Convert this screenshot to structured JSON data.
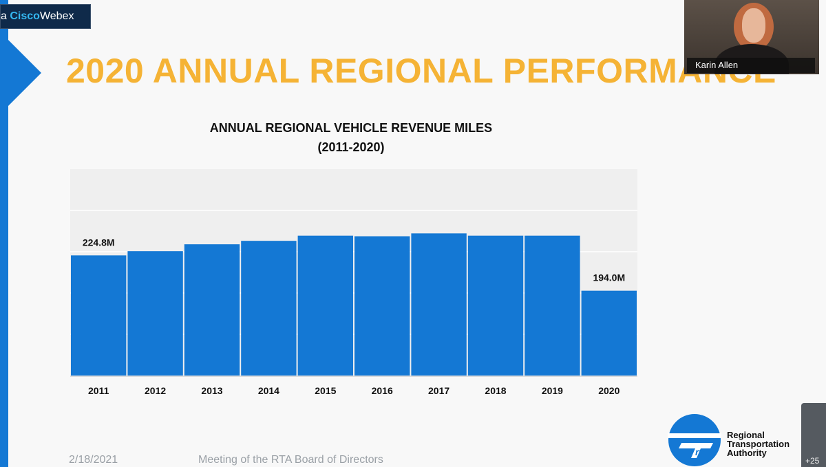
{
  "webex": {
    "prefix": "a",
    "brand_cisco": "Cisco",
    "brand_webex": "Webex"
  },
  "slide": {
    "title": "2020 ANNUAL REGIONAL PERFORMANCE",
    "footer_date": "2/18/2021",
    "footer_meeting": "Meeting of the RTA Board of Directors"
  },
  "video": {
    "participant_name": "Karin Allen"
  },
  "side_tab": {
    "label": "+25"
  },
  "logo": {
    "line1": "Regional",
    "line2": "Transportation",
    "line3": "Authority",
    "mark": "rta"
  },
  "colors": {
    "bar": "#1478d4",
    "title": "#f5b335",
    "accent": "#1478d4"
  },
  "chart_data": {
    "type": "bar",
    "title": "ANNUAL REGIONAL VEHICLE REVENUE MILES",
    "subtitle": "(2011-2020)",
    "categories": [
      "2011",
      "2012",
      "2013",
      "2014",
      "2015",
      "2016",
      "2017",
      "2018",
      "2019",
      "2020"
    ],
    "values": [
      224.8,
      228.5,
      234.5,
      237.5,
      242.0,
      241.5,
      244.0,
      242.0,
      242.0,
      194.0
    ],
    "data_labels": [
      {
        "index": 0,
        "text": "224.8M"
      },
      {
        "index": 9,
        "text": "194.0M"
      }
    ],
    "ylim": [
      120,
      300
    ],
    "grid": true,
    "xlabel": "",
    "ylabel": ""
  }
}
